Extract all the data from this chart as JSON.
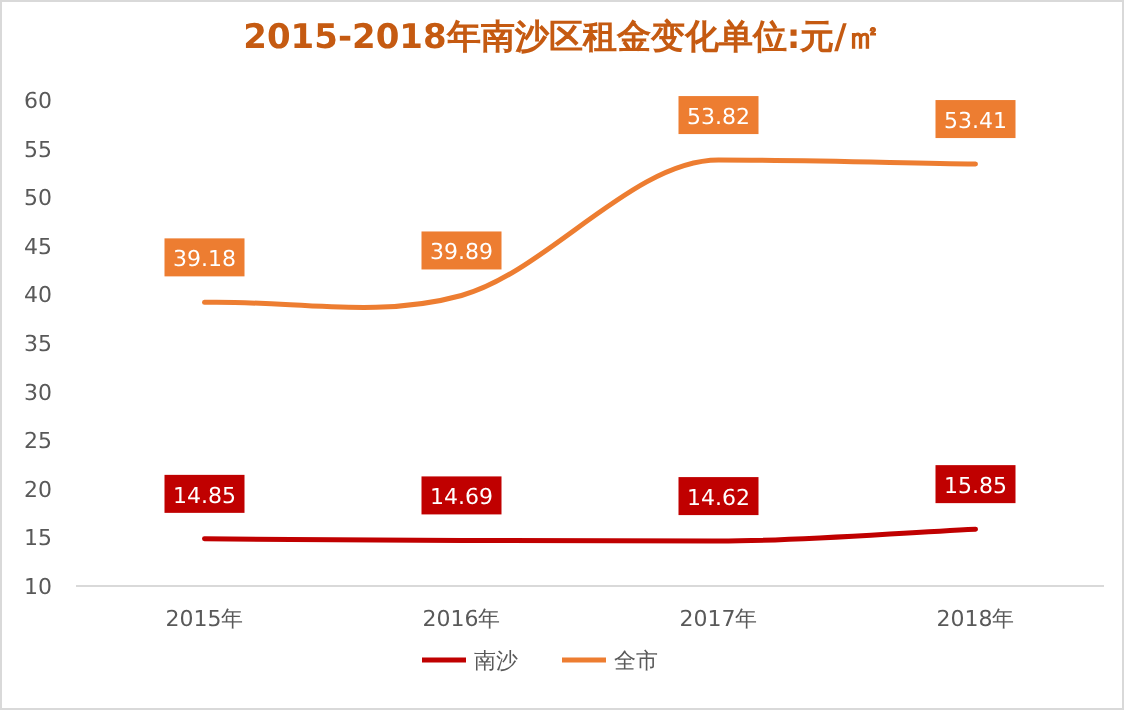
{
  "chart_data": {
    "type": "line",
    "title": "2015-2018年南沙区租金变化单位:元/㎡",
    "categories": [
      "2015年",
      "2016年",
      "2017年",
      "2018年"
    ],
    "series": [
      {
        "name": "南沙",
        "color": "#c00000",
        "values": [
          14.85,
          14.69,
          14.62,
          15.85
        ]
      },
      {
        "name": "全市",
        "color": "#ed7d31",
        "values": [
          39.18,
          39.89,
          53.82,
          53.41
        ]
      }
    ],
    "ylim": [
      10,
      60
    ],
    "yticks": [
      10,
      15,
      20,
      25,
      30,
      35,
      40,
      45,
      50,
      55,
      60
    ],
    "legend": "bottom",
    "data_labels": true
  }
}
